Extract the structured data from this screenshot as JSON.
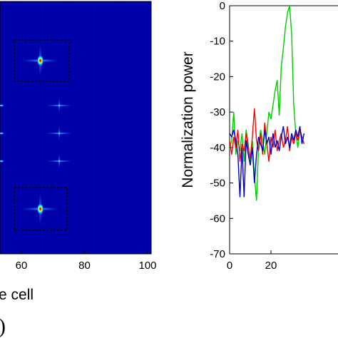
{
  "chart_data": [
    {
      "type": "heatmap",
      "x_ticks": [
        "60",
        "80",
        "100"
      ],
      "x_label_visible": "e cell",
      "panel_letter_visible": ")",
      "colormap": "jet",
      "background_color": "#0000a8",
      "spots": [
        {
          "x": 66,
          "y": "upper",
          "peak": "high",
          "boxed": true
        },
        {
          "x": 66,
          "y": "lower",
          "peak": "high",
          "boxed": true
        },
        {
          "x": 72,
          "y": "mid-upper",
          "peak": "low",
          "boxed": false
        },
        {
          "x": 72,
          "y": "mid",
          "peak": "low",
          "boxed": false
        },
        {
          "x": 72,
          "y": "mid-lower",
          "peak": "low",
          "boxed": false
        }
      ]
    },
    {
      "type": "line",
      "ylabel": "Normalization power",
      "x_ticks": [
        "0",
        "20"
      ],
      "y_ticks": [
        "0",
        "-10",
        "-20",
        "-30",
        "-40",
        "-50",
        "-60",
        "-70"
      ],
      "xlim": [
        0,
        36
      ],
      "ylim": [
        -70,
        0
      ],
      "series": [
        {
          "color": "#00cc00",
          "x": [
            0,
            1,
            2,
            3,
            4,
            5,
            6,
            7,
            8,
            9,
            10,
            11,
            12,
            13,
            14,
            15,
            16,
            17,
            18,
            19,
            20,
            21,
            22,
            23,
            24,
            25,
            26,
            27,
            28,
            29,
            30,
            31,
            32,
            33,
            34,
            35,
            36
          ],
          "y": [
            -40,
            -38,
            -30,
            -42,
            -38,
            -41,
            -36,
            -44,
            -35,
            -39,
            -45,
            -38,
            -48,
            -55,
            -40,
            -35,
            -38,
            -42,
            -36,
            -30,
            -32,
            -28,
            -24,
            -21,
            -31,
            -17,
            -12,
            -6,
            -2,
            0,
            -8,
            -28,
            -36,
            -40,
            -35,
            -37,
            -39
          ]
        },
        {
          "color": "#ff0000",
          "x": [
            0,
            1,
            2,
            3,
            4,
            5,
            6,
            7,
            8,
            9,
            10,
            11,
            12,
            13,
            14,
            15,
            16,
            17,
            18,
            19,
            20,
            21,
            22,
            23,
            24,
            25,
            26,
            27,
            28,
            29,
            30,
            31,
            32,
            33,
            34,
            35,
            36
          ],
          "y": [
            -38,
            -42,
            -37,
            -40,
            -35,
            -44,
            -39,
            -41,
            -36,
            -40,
            -43,
            -37,
            -29,
            -38,
            -41,
            -36,
            -42,
            -33,
            -39,
            -44,
            -37,
            -40,
            -35,
            -41,
            -38,
            -36,
            -40,
            -38,
            -34,
            -41,
            -37,
            -39,
            -36,
            -38,
            -35,
            -37,
            -39
          ]
        },
        {
          "color": "#0000cc",
          "x": [
            0,
            1,
            2,
            3,
            4,
            5,
            6,
            7,
            8,
            9,
            10,
            11,
            12,
            13,
            14,
            15,
            16,
            17,
            18,
            19,
            20,
            21,
            22,
            23,
            24,
            25,
            26,
            27,
            28,
            29,
            30,
            31,
            32,
            33,
            34,
            35,
            36
          ],
          "y": [
            -36,
            -37,
            -35,
            -38,
            -42,
            -54,
            -40,
            -54,
            -38,
            -42,
            -45,
            -40,
            -50,
            -42,
            -37,
            -39,
            -41,
            -35,
            -39,
            -37,
            -42,
            -36,
            -40,
            -38,
            -41,
            -37,
            -34,
            -39,
            -37,
            -40,
            -36,
            -38,
            -35,
            -37,
            -34,
            -39,
            -36
          ]
        }
      ]
    }
  ]
}
